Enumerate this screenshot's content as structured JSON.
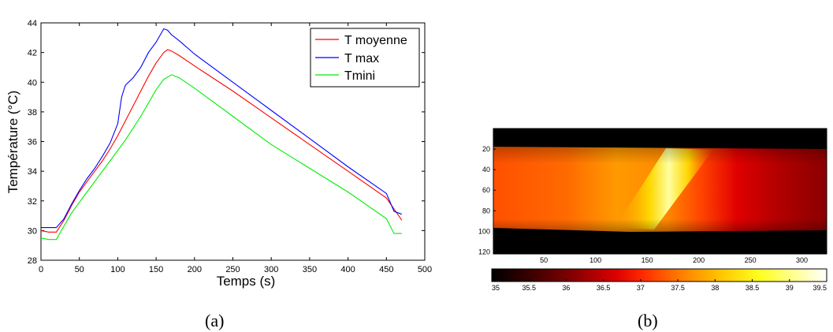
{
  "captions": {
    "left": "(a)",
    "right": "(b)"
  },
  "chart_data": [
    {
      "type": "line",
      "title": "",
      "xlabel": "Temps (s)",
      "ylabel": "Température (°C)",
      "xlim": [
        0,
        500
      ],
      "ylim": [
        28,
        44
      ],
      "xticks": [
        0,
        50,
        100,
        150,
        200,
        250,
        300,
        350,
        400,
        450,
        500
      ],
      "yticks": [
        28,
        30,
        32,
        34,
        36,
        38,
        40,
        42,
        44
      ],
      "grid": false,
      "legend_position": "top-right",
      "series": [
        {
          "name": "T moyenne",
          "color": "#ff0000",
          "points": [
            [
              0,
              30.0
            ],
            [
              10,
              29.9
            ],
            [
              20,
              29.9
            ],
            [
              30,
              30.7
            ],
            [
              40,
              31.7
            ],
            [
              50,
              32.6
            ],
            [
              60,
              33.3
            ],
            [
              70,
              34.0
            ],
            [
              80,
              34.7
            ],
            [
              90,
              35.5
            ],
            [
              100,
              36.4
            ],
            [
              110,
              37.4
            ],
            [
              120,
              38.4
            ],
            [
              130,
              39.4
            ],
            [
              140,
              40.4
            ],
            [
              150,
              41.3
            ],
            [
              160,
              42.0
            ],
            [
              165,
              42.2
            ],
            [
              170,
              42.1
            ],
            [
              180,
              41.8
            ],
            [
              200,
              41.1
            ],
            [
              250,
              39.4
            ],
            [
              300,
              37.6
            ],
            [
              350,
              35.8
            ],
            [
              400,
              34.0
            ],
            [
              450,
              32.2
            ],
            [
              470,
              30.7
            ]
          ]
        },
        {
          "name": "T max",
          "color": "#0000ff",
          "points": [
            [
              0,
              30.2
            ],
            [
              10,
              30.2
            ],
            [
              20,
              30.2
            ],
            [
              30,
              30.8
            ],
            [
              40,
              31.8
            ],
            [
              50,
              32.7
            ],
            [
              60,
              33.5
            ],
            [
              70,
              34.2
            ],
            [
              80,
              35.0
            ],
            [
              90,
              35.9
            ],
            [
              100,
              37.2
            ],
            [
              105,
              39.0
            ],
            [
              110,
              39.8
            ],
            [
              120,
              40.3
            ],
            [
              130,
              41.0
            ],
            [
              140,
              42.0
            ],
            [
              150,
              42.7
            ],
            [
              160,
              43.6
            ],
            [
              165,
              43.5
            ],
            [
              170,
              43.2
            ],
            [
              180,
              42.8
            ],
            [
              200,
              41.9
            ],
            [
              250,
              40.0
            ],
            [
              300,
              38.1
            ],
            [
              350,
              36.2
            ],
            [
              400,
              34.3
            ],
            [
              450,
              32.5
            ],
            [
              460,
              31.3
            ],
            [
              470,
              31.1
            ]
          ]
        },
        {
          "name": "Tmini",
          "color": "#00ee00",
          "points": [
            [
              0,
              29.5
            ],
            [
              10,
              29.4
            ],
            [
              20,
              29.4
            ],
            [
              30,
              30.3
            ],
            [
              40,
              31.2
            ],
            [
              50,
              31.9
            ],
            [
              60,
              32.6
            ],
            [
              70,
              33.3
            ],
            [
              80,
              34.0
            ],
            [
              90,
              34.7
            ],
            [
              100,
              35.4
            ],
            [
              110,
              36.1
            ],
            [
              120,
              36.9
            ],
            [
              130,
              37.7
            ],
            [
              140,
              38.6
            ],
            [
              150,
              39.5
            ],
            [
              160,
              40.2
            ],
            [
              170,
              40.5
            ],
            [
              180,
              40.3
            ],
            [
              200,
              39.6
            ],
            [
              250,
              37.7
            ],
            [
              300,
              35.8
            ],
            [
              350,
              34.2
            ],
            [
              400,
              32.6
            ],
            [
              450,
              30.8
            ],
            [
              460,
              29.8
            ],
            [
              470,
              29.8
            ]
          ]
        }
      ]
    },
    {
      "type": "heatmap",
      "title": "",
      "colormap": "hot",
      "xlim": [
        1,
        324
      ],
      "ylim": [
        0,
        122
      ],
      "xticks": [
        50,
        100,
        150,
        200,
        250,
        300
      ],
      "yticks": [
        20,
        40,
        60,
        80,
        100,
        120
      ],
      "colorbar": {
        "range": [
          35,
          39.5
        ],
        "ticks": [
          "35",
          "35.5",
          "36",
          "36.5",
          "37",
          "37.5",
          "38",
          "38.5",
          "39",
          "39.5"
        ]
      }
    }
  ]
}
